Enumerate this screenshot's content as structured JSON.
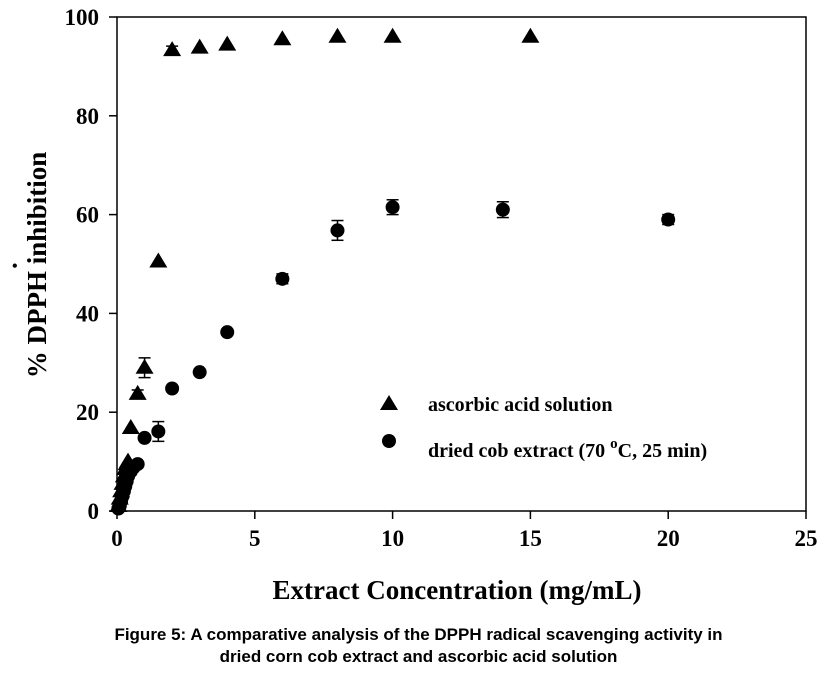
{
  "chart_data": {
    "type": "scatter",
    "xlabel": "Extract Concentration (mg/mL)",
    "ylabel_prefix": "% DPPH",
    "ylabel_suffix": " inhibition",
    "ylabel_dot": "•",
    "xlim": [
      0,
      25
    ],
    "ylim": [
      0,
      100
    ],
    "xticks": [
      0,
      5,
      10,
      15,
      20,
      25
    ],
    "yticks": [
      0,
      20,
      40,
      60,
      80,
      100
    ],
    "grid": false,
    "legend_position": "lower-right",
    "series": [
      {
        "name": "ascorbic acid solution",
        "marker": "triangle",
        "color": "#000000",
        "x": [
          0.05,
          0.1,
          0.15,
          0.2,
          0.25,
          0.3,
          0.35,
          0.4,
          0.5,
          0.75,
          1.0,
          1.5,
          2.0,
          3.0,
          4.0,
          6.0,
          8.0,
          10.0,
          15.0
        ],
        "y": [
          1.0,
          2.5,
          4.0,
          5.5,
          7.0,
          8.5,
          9.5,
          10.0,
          16.8,
          23.7,
          29.0,
          50.5,
          93.3,
          93.8,
          94.4,
          95.5,
          96.0,
          96.0,
          96.0
        ],
        "err": [
          0,
          0,
          0,
          0,
          0,
          0,
          0,
          0,
          0,
          0.8,
          2.0,
          0,
          0.8,
          0,
          0,
          0,
          0,
          0,
          0
        ]
      },
      {
        "name": "dried cob extract (70 °C, 25 min)",
        "marker": "circle",
        "color": "#000000",
        "x": [
          0.05,
          0.1,
          0.15,
          0.2,
          0.25,
          0.3,
          0.35,
          0.4,
          0.5,
          0.6,
          0.75,
          1.0,
          1.5,
          2.0,
          3.0,
          4.0,
          6.0,
          8.0,
          10.0,
          14.0,
          20.0
        ],
        "y": [
          0.5,
          1.0,
          2.0,
          3.0,
          4.0,
          5.0,
          6.0,
          7.0,
          8.0,
          8.8,
          9.5,
          14.8,
          16.1,
          24.8,
          28.1,
          36.2,
          47.0,
          56.8,
          61.5,
          61.0,
          59.0
        ],
        "err": [
          0,
          0,
          0,
          0,
          0,
          0,
          0,
          0,
          0,
          0,
          0,
          0.6,
          2.0,
          0,
          0,
          0,
          1.0,
          2.0,
          1.5,
          1.6,
          1.0
        ]
      }
    ],
    "legend": {
      "entry_1": "ascorbic acid solution",
      "entry_2_prefix": "dried cob extract (70 ",
      "entry_2_sup": "o",
      "entry_2_suffix": "C, 25 min)"
    }
  },
  "caption": {
    "line1": "Figure 5: A comparative analysis of the DPPH radical scavenging activity in",
    "line2": "dried corn cob extract and ascorbic acid solution"
  }
}
